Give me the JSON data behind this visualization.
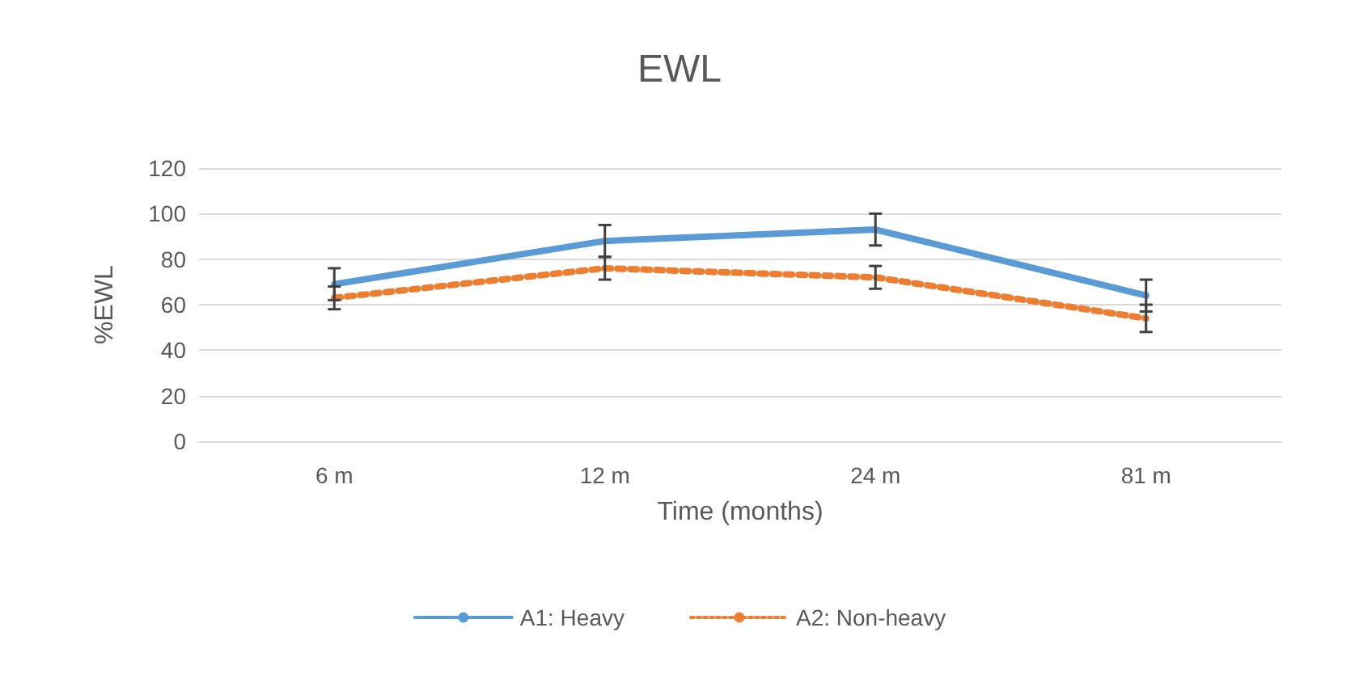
{
  "chart_data": {
    "type": "line",
    "title": "EWL",
    "xlabel": "Time (months)",
    "ylabel": "%EWL",
    "categories": [
      "6 m",
      "12 m",
      "24 m",
      "81 m"
    ],
    "series": [
      {
        "name": "A1: Heavy",
        "color": "#5b9bd5",
        "line_style": "solid",
        "values": [
          69,
          88,
          93,
          64
        ],
        "errors": [
          7,
          7,
          7,
          7
        ]
      },
      {
        "name": "A2: Non-heavy",
        "color": "#ed7d31",
        "line_style": "dotted",
        "values": [
          63,
          76,
          72,
          54
        ],
        "errors": [
          5,
          5,
          5,
          6
        ]
      }
    ],
    "ylim": [
      0,
      120
    ],
    "yticks": [
      0,
      20,
      40,
      60,
      80,
      100,
      120
    ],
    "grid": "y",
    "legend": "bottom",
    "marker": "none"
  }
}
